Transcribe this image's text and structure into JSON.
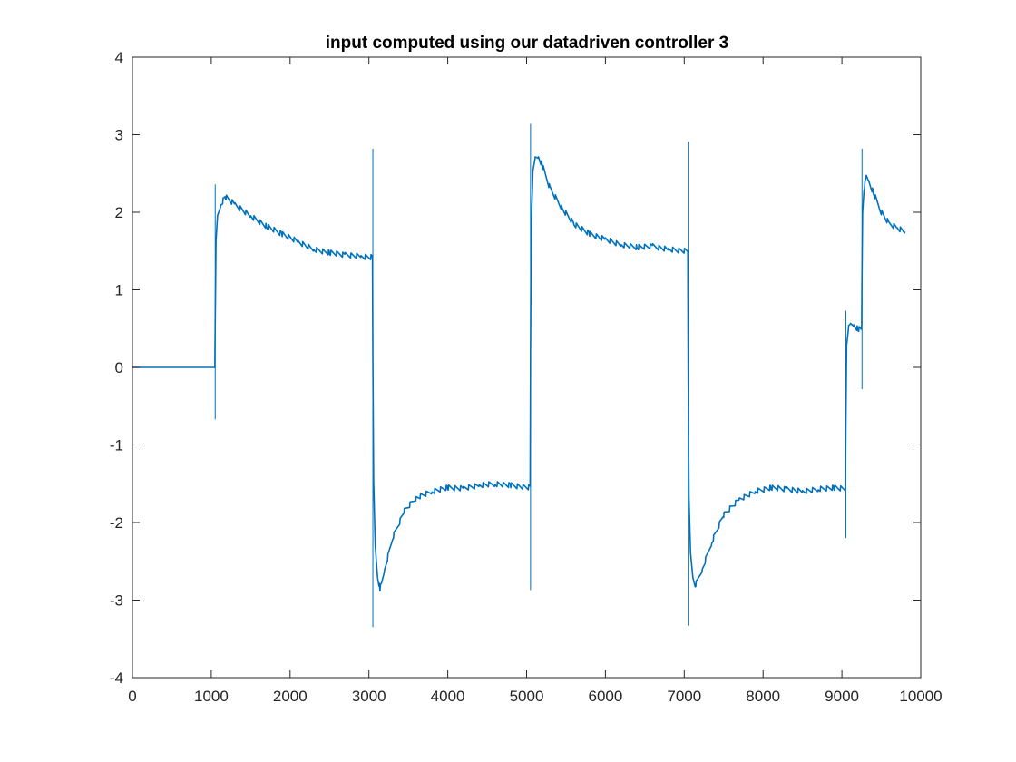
{
  "chart_data": {
    "type": "line",
    "title": "input computed using our datadriven controller 3",
    "xlabel": "",
    "ylabel": "",
    "xlim": [
      0,
      10000
    ],
    "ylim": [
      -4,
      4
    ],
    "x_ticks": [
      0,
      1000,
      2000,
      3000,
      4000,
      5000,
      6000,
      7000,
      8000,
      9000,
      10000
    ],
    "x_tick_labels": [
      "0",
      "1000",
      "2000",
      "3000",
      "4000",
      "5000",
      "6000",
      "7000",
      "8000",
      "9000",
      "10000"
    ],
    "y_ticks": [
      -4,
      -3,
      -2,
      -1,
      0,
      1,
      2,
      3,
      4
    ],
    "y_tick_labels": [
      "-4",
      "-3",
      "-2",
      "-1",
      "0",
      "1",
      "2",
      "3",
      "4"
    ],
    "grid": false,
    "box": true,
    "series": [
      {
        "color": "#0072BD",
        "x": [
          0,
          1040,
          1045,
          1050,
          1060,
          1080,
          1120,
          1180,
          1300,
          1500,
          1700,
          1900,
          2100,
          2300,
          2500,
          2700,
          2900,
          3045,
          3050,
          3060,
          3080,
          3110,
          3140,
          3160,
          3200,
          3300,
          3450,
          3600,
          3800,
          4000,
          4200,
          4400,
          4600,
          4800,
          5045,
          5050,
          5060,
          5080,
          5110,
          5150,
          5200,
          5300,
          5450,
          5600,
          5800,
          6000,
          6200,
          6400,
          6600,
          6800,
          7045,
          7050,
          7060,
          7080,
          7110,
          7140,
          7170,
          7230,
          7350,
          7500,
          7700,
          7900,
          8100,
          8300,
          8500,
          8700,
          8900,
          9045,
          9050,
          9060,
          9080,
          9110,
          9150,
          9200,
          9250,
          9255,
          9262,
          9280,
          9310,
          9340,
          9400,
          9500,
          9600,
          9700,
          9800
        ],
        "y": [
          0,
          0,
          0,
          0.6,
          1.6,
          1.95,
          2.1,
          2.2,
          2.1,
          1.95,
          1.82,
          1.72,
          1.62,
          1.52,
          1.48,
          1.45,
          1.43,
          1.42,
          0.1,
          -1.5,
          -2.3,
          -2.7,
          -2.85,
          -2.8,
          -2.6,
          -2.2,
          -1.85,
          -1.68,
          -1.6,
          -1.55,
          -1.56,
          -1.52,
          -1.5,
          -1.52,
          -1.55,
          0.2,
          1.9,
          2.5,
          2.7,
          2.72,
          2.6,
          2.3,
          2.05,
          1.85,
          1.72,
          1.65,
          1.58,
          1.55,
          1.56,
          1.52,
          1.5,
          0.0,
          -1.7,
          -2.4,
          -2.7,
          -2.8,
          -2.75,
          -2.6,
          -2.25,
          -1.9,
          -1.7,
          -1.6,
          -1.55,
          -1.57,
          -1.6,
          -1.57,
          -1.55,
          -1.57,
          -0.8,
          0.3,
          0.5,
          0.55,
          0.55,
          0.5,
          0.48,
          1.2,
          2.0,
          2.3,
          2.45,
          2.4,
          2.25,
          2.0,
          1.85,
          1.8,
          1.75
        ]
      }
    ],
    "spikes": [
      {
        "x": 1050,
        "y_low": -0.67,
        "y_high": 2.36
      },
      {
        "x": 3050,
        "y_low": -3.35,
        "y_high": 2.82
      },
      {
        "x": 5050,
        "y_low": -2.87,
        "y_high": 3.14
      },
      {
        "x": 7050,
        "y_low": -3.33,
        "y_high": 2.91
      },
      {
        "x": 9050,
        "y_low": -2.2,
        "y_high": 0.73
      },
      {
        "x": 9255,
        "y_low": -0.28,
        "y_high": 2.82
      }
    ]
  }
}
